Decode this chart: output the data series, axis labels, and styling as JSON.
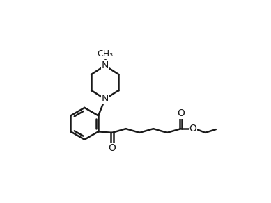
{
  "background": "#ffffff",
  "line_color": "#1a1a1a",
  "line_width": 1.8,
  "font_size": 10,
  "atoms": {
    "N_top_label": "N",
    "N_bot_label": "N",
    "methyl_top": "CH₃",
    "O_ketone": "O",
    "O_ester_carbonyl": "O",
    "O_ester_single": "O"
  },
  "xlim": [
    0.0,
    9.0
  ],
  "ylim": [
    0.5,
    9.5
  ]
}
